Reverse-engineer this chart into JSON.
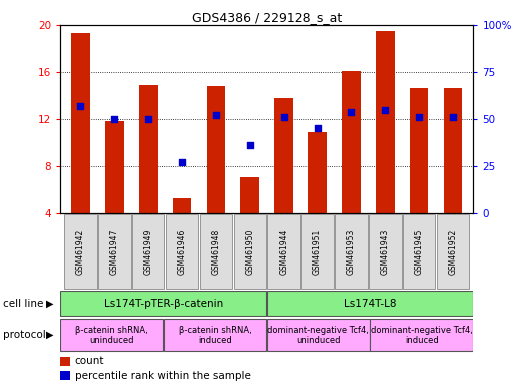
{
  "title": "GDS4386 / 229128_s_at",
  "samples": [
    "GSM461942",
    "GSM461947",
    "GSM461949",
    "GSM461946",
    "GSM461948",
    "GSM461950",
    "GSM461944",
    "GSM461951",
    "GSM461953",
    "GSM461943",
    "GSM461945",
    "GSM461952"
  ],
  "counts": [
    19.3,
    11.8,
    14.9,
    5.3,
    14.8,
    7.1,
    13.8,
    10.9,
    16.1,
    19.5,
    14.6,
    14.6
  ],
  "percentiles": [
    57,
    50,
    50,
    27,
    52,
    36,
    51,
    45,
    54,
    55,
    51,
    51
  ],
  "ylim_left": [
    4,
    20
  ],
  "ylim_right": [
    0,
    100
  ],
  "yticks_left": [
    4,
    8,
    12,
    16,
    20
  ],
  "yticks_right": [
    0,
    25,
    50,
    75,
    100
  ],
  "bar_color": "#cc2200",
  "dot_color": "#0000cc",
  "bar_width": 0.55,
  "cell_line_groups": [
    {
      "label": "Ls174T-pTER-β-catenin",
      "start": 0,
      "end": 6,
      "color": "#88ee88"
    },
    {
      "label": "Ls174T-L8",
      "start": 6,
      "end": 12,
      "color": "#88ee88"
    }
  ],
  "protocol_groups": [
    {
      "label": "β-catenin shRNA,\nuninduced",
      "start": 0,
      "end": 3,
      "color": "#ffaaff"
    },
    {
      "label": "β-catenin shRNA,\ninduced",
      "start": 3,
      "end": 6,
      "color": "#ffaaff"
    },
    {
      "label": "dominant-negative Tcf4,\nuninduced",
      "start": 6,
      "end": 9,
      "color": "#ffaaff"
    },
    {
      "label": "dominant-negative Tcf4,\ninduced",
      "start": 9,
      "end": 12,
      "color": "#ffaaff"
    }
  ],
  "legend_count_label": "count",
  "legend_percentile_label": "percentile rank within the sample",
  "cell_line_label": "cell line",
  "protocol_label": "protocol"
}
